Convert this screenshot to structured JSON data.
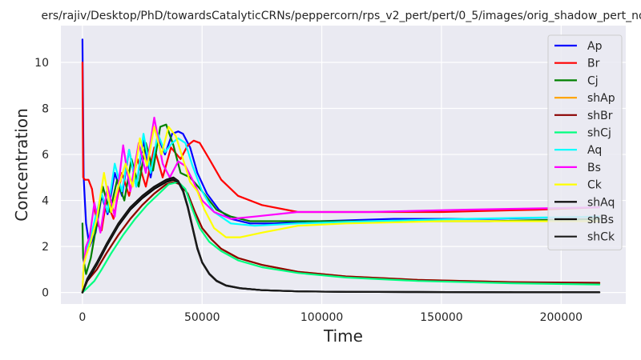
{
  "chart_data": {
    "type": "line",
    "title": "ers/rajiv/Desktop/PhD/towardsCatalyticCRNs/peppercorn/rps_v2_pert/pert/0_5/images/orig_shadow_pert_no",
    "xlabel": "Time",
    "ylabel": "Concentration",
    "xlim": [
      -9000,
      227000
    ],
    "ylim": [
      -0.5,
      11.6
    ],
    "xticks": [
      0,
      50000,
      100000,
      150000,
      200000
    ],
    "xtick_labels": [
      "0",
      "50000",
      "100000",
      "150000",
      "200000"
    ],
    "yticks": [
      0,
      2,
      4,
      6,
      8,
      10
    ],
    "ytick_labels": [
      "0",
      "2",
      "4",
      "6",
      "8",
      "10"
    ],
    "grid": true,
    "legend_position": "top-right",
    "series": [
      {
        "name": "Ap",
        "color": "#0000ff",
        "x": [
          0,
          500,
          1500,
          3000,
          5500,
          8000,
          10500,
          13500,
          16500,
          19500,
          22500,
          25500,
          28500,
          31500,
          34500,
          37500,
          40000,
          42000,
          45000,
          48000,
          52000,
          57000,
          62000,
          70000,
          80000,
          100000,
          130000,
          170000,
          216000
        ],
        "y": [
          11,
          5,
          3,
          2,
          2.6,
          4.2,
          3.4,
          5.2,
          4.2,
          6.2,
          4.6,
          6.6,
          5,
          6.8,
          6,
          6.9,
          7,
          6.9,
          6.3,
          5.2,
          4.3,
          3.6,
          3.2,
          3,
          3,
          3.1,
          3.2,
          3.2,
          3.3
        ]
      },
      {
        "name": "Br",
        "color": "#ff0000",
        "x": [
          0,
          300,
          1000,
          2500,
          4000,
          6000,
          8000,
          10000,
          13000,
          16500,
          19500,
          23000,
          26500,
          30000,
          33500,
          37000,
          41000,
          44000,
          46500,
          49000,
          53000,
          58000,
          65000,
          75000,
          90000,
          110000,
          150000,
          190000,
          216000
        ],
        "y": [
          10,
          5,
          4.9,
          4.9,
          4.5,
          3,
          2.7,
          4,
          3.2,
          5.2,
          4.2,
          5.8,
          4.6,
          6.3,
          5,
          6.3,
          5.8,
          6.4,
          6.6,
          6.5,
          5.8,
          4.9,
          4.2,
          3.8,
          3.5,
          3.5,
          3.5,
          3.6,
          3.7
        ]
      },
      {
        "name": "Cj",
        "color": "#008000",
        "x": [
          0,
          300,
          1500,
          3500,
          6000,
          8500,
          11500,
          14500,
          17500,
          20500,
          23500,
          26500,
          29500,
          32500,
          35000,
          38000,
          41000,
          45000,
          50000,
          56000,
          62000,
          70000,
          90000,
          130000,
          170000,
          216000
        ],
        "y": [
          3,
          1.5,
          0.8,
          1.5,
          3,
          4.6,
          3.5,
          4.9,
          4,
          5.8,
          4.6,
          6.5,
          5.3,
          7.2,
          7.3,
          6.4,
          5.2,
          5,
          4.4,
          3.6,
          3.3,
          3.1,
          3.1,
          3.1,
          3.1,
          3.2
        ]
      },
      {
        "name": "shAp",
        "color": "#ffa500",
        "x": [
          0,
          2000,
          6000,
          10000,
          15000,
          20000,
          25000,
          30000,
          35000,
          38000,
          41000,
          44000,
          47000,
          50000,
          54000,
          58000,
          65000,
          75000,
          90000,
          110000,
          140000,
          180000,
          216000
        ],
        "y": [
          0,
          0.5,
          1,
          1.7,
          2.5,
          3.2,
          3.8,
          4.3,
          4.7,
          4.8,
          4.7,
          4.3,
          3.5,
          2.8,
          2.3,
          1.9,
          1.5,
          1.2,
          0.9,
          0.7,
          0.55,
          0.45,
          0.4
        ]
      },
      {
        "name": "shBr",
        "color": "#8b0000",
        "x": [
          0,
          2000,
          6000,
          10000,
          15000,
          20000,
          25000,
          30000,
          35000,
          38000,
          41000,
          44000,
          47000,
          50000,
          54000,
          58000,
          65000,
          75000,
          90000,
          110000,
          140000,
          180000,
          216000
        ],
        "y": [
          0,
          0.5,
          1,
          1.7,
          2.5,
          3.2,
          3.8,
          4.3,
          4.7,
          4.8,
          4.7,
          4.3,
          3.5,
          2.8,
          2.3,
          1.9,
          1.5,
          1.2,
          0.9,
          0.7,
          0.55,
          0.45,
          0.42
        ]
      },
      {
        "name": "shCj",
        "color": "#00ff7f",
        "x": [
          0,
          2000,
          5000,
          8000,
          12000,
          17000,
          22000,
          27000,
          32000,
          36000,
          40000,
          43000,
          46000,
          49000,
          53000,
          58000,
          65000,
          75000,
          90000,
          110000,
          140000,
          180000,
          216000
        ],
        "y": [
          0,
          0.2,
          0.5,
          1,
          1.7,
          2.5,
          3.2,
          3.8,
          4.3,
          4.7,
          4.8,
          4.5,
          3.6,
          2.8,
          2.2,
          1.8,
          1.4,
          1.1,
          0.85,
          0.65,
          0.5,
          0.4,
          0.35
        ]
      },
      {
        "name": "Aq",
        "color": "#00ffff",
        "x": [
          0,
          500,
          1500,
          3000,
          5500,
          8000,
          10500,
          13500,
          16500,
          19500,
          22500,
          25500,
          28500,
          31500,
          34500,
          37500,
          40000,
          43000,
          46000,
          50000,
          55000,
          62000,
          72000,
          90000,
          120000,
          160000,
          216000
        ],
        "y": [
          0,
          1.2,
          1.8,
          2.2,
          3.3,
          4.3,
          3.5,
          5.6,
          4.4,
          6.2,
          4.6,
          6.9,
          5.2,
          6.9,
          6.1,
          6.5,
          6.7,
          6.5,
          5.5,
          4.4,
          3.5,
          3,
          2.9,
          3,
          3.1,
          3.2,
          3.3
        ]
      },
      {
        "name": "Bs",
        "color": "#ff00ff",
        "x": [
          0,
          500,
          1500,
          3000,
          5000,
          7500,
          10500,
          13500,
          17000,
          20000,
          23500,
          26500,
          30000,
          33500,
          36500,
          40000,
          43000,
          46000,
          50000,
          55000,
          62000,
          72000,
          90000,
          120000,
          160000,
          216000
        ],
        "y": [
          0,
          1.2,
          2,
          2.4,
          3.9,
          2.6,
          4.6,
          3.3,
          6.4,
          4.4,
          6.5,
          5.2,
          7.6,
          5.6,
          5,
          5.7,
          5.5,
          4.9,
          4,
          3.5,
          3.2,
          3.3,
          3.5,
          3.5,
          3.6,
          3.7
        ]
      },
      {
        "name": "Ck",
        "color": "#ffff00",
        "x": [
          0,
          500,
          1500,
          3500,
          6000,
          9000,
          12000,
          15000,
          18000,
          21000,
          24000,
          27000,
          30000,
          33000,
          36000,
          39000,
          42000,
          45000,
          48000,
          51000,
          55000,
          60000,
          66000,
          75000,
          90000,
          110000,
          150000,
          190000,
          216000
        ],
        "y": [
          0,
          1.2,
          1.6,
          2.2,
          3.2,
          5.2,
          3.5,
          4.6,
          5.6,
          4.6,
          6.7,
          5.5,
          7.2,
          6,
          7.2,
          6.8,
          5.8,
          4.8,
          4.4,
          3.6,
          2.8,
          2.4,
          2.4,
          2.6,
          2.9,
          3,
          3.1,
          3.1,
          3.1
        ]
      },
      {
        "name": "shAq",
        "color": "#000000",
        "x": [
          0,
          2000,
          6000,
          10000,
          15000,
          20000,
          25000,
          30000,
          35000,
          38000,
          40000,
          42000,
          44000,
          46000,
          48000,
          50000,
          53000,
          56000,
          60000,
          66000,
          75000,
          90000,
          110000,
          140000,
          180000,
          216000
        ],
        "y": [
          0,
          0.5,
          1.2,
          2,
          2.9,
          3.6,
          4.1,
          4.5,
          4.8,
          4.9,
          4.8,
          4.4,
          3.7,
          2.8,
          1.9,
          1.3,
          0.8,
          0.5,
          0.3,
          0.18,
          0.1,
          0.05,
          0.03,
          0.02,
          0.01,
          0.01
        ]
      },
      {
        "name": "shBs",
        "color": "#0d0d0d",
        "x": [
          0,
          2000,
          6000,
          10000,
          15000,
          20000,
          25000,
          30000,
          35000,
          38000,
          40000,
          42000,
          44000,
          46000,
          48000,
          50000,
          53000,
          56000,
          60000,
          66000,
          75000,
          90000,
          110000,
          140000,
          180000,
          216000
        ],
        "y": [
          0,
          0.6,
          1.3,
          2.1,
          3,
          3.7,
          4.2,
          4.6,
          4.9,
          5,
          4.85,
          4.45,
          3.75,
          2.85,
          1.95,
          1.32,
          0.82,
          0.52,
          0.31,
          0.19,
          0.1,
          0.05,
          0.03,
          0.02,
          0.01,
          0.01
        ]
      },
      {
        "name": "shCk",
        "color": "#1a1a1a",
        "x": [
          0,
          2000,
          6000,
          10000,
          15000,
          20000,
          25000,
          30000,
          35000,
          38000,
          40000,
          42000,
          44000,
          46000,
          48000,
          50000,
          53000,
          56000,
          60000,
          66000,
          75000,
          90000,
          110000,
          140000,
          180000,
          216000
        ],
        "y": [
          0,
          0.55,
          1.25,
          2.05,
          2.95,
          3.65,
          4.15,
          4.55,
          4.85,
          4.95,
          4.82,
          4.42,
          3.72,
          2.82,
          1.92,
          1.3,
          0.8,
          0.5,
          0.3,
          0.18,
          0.1,
          0.05,
          0.03,
          0.02,
          0.01,
          0.01
        ]
      }
    ]
  }
}
